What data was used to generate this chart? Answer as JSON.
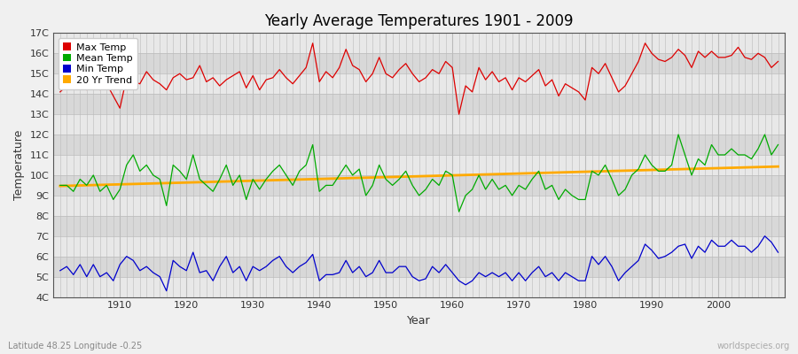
{
  "title": "Yearly Average Temperatures 1901 - 2009",
  "xlabel": "Year",
  "ylabel": "Temperature",
  "subtitle": "Latitude 48.25 Longitude -0.25",
  "watermark": "worldspecies.org",
  "years": [
    1901,
    1902,
    1903,
    1904,
    1905,
    1906,
    1907,
    1908,
    1909,
    1910,
    1911,
    1912,
    1913,
    1914,
    1915,
    1916,
    1917,
    1918,
    1919,
    1920,
    1921,
    1922,
    1923,
    1924,
    1925,
    1926,
    1927,
    1928,
    1929,
    1930,
    1931,
    1932,
    1933,
    1934,
    1935,
    1936,
    1937,
    1938,
    1939,
    1940,
    1941,
    1942,
    1943,
    1944,
    1945,
    1946,
    1947,
    1948,
    1949,
    1950,
    1951,
    1952,
    1953,
    1954,
    1955,
    1956,
    1957,
    1958,
    1959,
    1960,
    1961,
    1962,
    1963,
    1964,
    1965,
    1966,
    1967,
    1968,
    1969,
    1970,
    1971,
    1972,
    1973,
    1974,
    1975,
    1976,
    1977,
    1978,
    1979,
    1980,
    1981,
    1982,
    1983,
    1984,
    1985,
    1986,
    1987,
    1988,
    1989,
    1990,
    1991,
    1992,
    1993,
    1994,
    1995,
    1996,
    1997,
    1998,
    1999,
    2000,
    2001,
    2002,
    2003,
    2004,
    2005,
    2006,
    2007,
    2008,
    2009
  ],
  "max_temp": [
    14.1,
    14.4,
    14.3,
    14.7,
    14.2,
    14.8,
    14.2,
    14.5,
    13.9,
    13.3,
    14.8,
    14.6,
    14.5,
    15.1,
    14.7,
    14.5,
    14.2,
    14.8,
    15.0,
    14.7,
    14.8,
    15.4,
    14.6,
    14.8,
    14.4,
    14.7,
    14.9,
    15.1,
    14.3,
    14.9,
    14.2,
    14.7,
    14.8,
    15.2,
    14.8,
    14.5,
    14.9,
    15.3,
    16.5,
    14.6,
    15.1,
    14.8,
    15.3,
    16.2,
    15.4,
    15.2,
    14.6,
    15.0,
    15.8,
    15.0,
    14.8,
    15.2,
    15.5,
    15.0,
    14.6,
    14.8,
    15.2,
    15.0,
    15.6,
    15.3,
    13.0,
    14.4,
    14.1,
    15.3,
    14.7,
    15.1,
    14.6,
    14.8,
    14.2,
    14.8,
    14.6,
    14.9,
    15.2,
    14.4,
    14.7,
    13.9,
    14.5,
    14.3,
    14.1,
    13.7,
    15.3,
    15.0,
    15.5,
    14.8,
    14.1,
    14.4,
    15.0,
    15.6,
    16.5,
    16.0,
    15.7,
    15.6,
    15.8,
    16.2,
    15.9,
    15.3,
    16.1,
    15.8,
    16.1,
    15.8,
    15.8,
    15.9,
    16.3,
    15.8,
    15.7,
    16.0,
    15.8,
    15.3,
    15.6
  ],
  "mean_temp": [
    9.5,
    9.5,
    9.2,
    9.8,
    9.5,
    10.0,
    9.2,
    9.5,
    8.8,
    9.3,
    10.5,
    11.0,
    10.2,
    10.5,
    10.0,
    9.8,
    8.5,
    10.5,
    10.2,
    9.8,
    11.0,
    9.8,
    9.5,
    9.2,
    9.8,
    10.5,
    9.5,
    10.0,
    8.8,
    9.8,
    9.3,
    9.8,
    10.2,
    10.5,
    10.0,
    9.5,
    10.2,
    10.5,
    11.5,
    9.2,
    9.5,
    9.5,
    10.0,
    10.5,
    10.0,
    10.3,
    9.0,
    9.5,
    10.5,
    9.8,
    9.5,
    9.8,
    10.2,
    9.5,
    9.0,
    9.3,
    9.8,
    9.5,
    10.2,
    10.0,
    8.2,
    9.0,
    9.3,
    10.0,
    9.3,
    9.8,
    9.3,
    9.5,
    9.0,
    9.5,
    9.3,
    9.8,
    10.2,
    9.3,
    9.5,
    8.8,
    9.3,
    9.0,
    8.8,
    8.8,
    10.2,
    10.0,
    10.5,
    9.8,
    9.0,
    9.3,
    10.0,
    10.3,
    11.0,
    10.5,
    10.2,
    10.2,
    10.5,
    12.0,
    11.0,
    10.0,
    10.8,
    10.5,
    11.5,
    11.0,
    11.0,
    11.3,
    11.0,
    11.0,
    10.8,
    11.3,
    12.0,
    11.0,
    11.5
  ],
  "min_temp": [
    5.3,
    5.5,
    5.1,
    5.6,
    5.0,
    5.6,
    5.0,
    5.2,
    4.8,
    5.6,
    6.0,
    5.8,
    5.3,
    5.5,
    5.2,
    5.0,
    4.3,
    5.8,
    5.5,
    5.3,
    6.2,
    5.2,
    5.3,
    4.8,
    5.5,
    6.0,
    5.2,
    5.5,
    4.8,
    5.5,
    5.3,
    5.5,
    5.8,
    6.0,
    5.5,
    5.2,
    5.5,
    5.7,
    6.1,
    4.8,
    5.1,
    5.1,
    5.2,
    5.8,
    5.2,
    5.5,
    5.0,
    5.2,
    5.8,
    5.2,
    5.2,
    5.5,
    5.5,
    5.0,
    4.8,
    4.9,
    5.5,
    5.2,
    5.6,
    5.2,
    4.8,
    4.6,
    4.8,
    5.2,
    5.0,
    5.2,
    5.0,
    5.2,
    4.8,
    5.2,
    4.8,
    5.2,
    5.5,
    5.0,
    5.2,
    4.8,
    5.2,
    5.0,
    4.8,
    4.8,
    6.0,
    5.6,
    6.0,
    5.5,
    4.8,
    5.2,
    5.5,
    5.8,
    6.6,
    6.3,
    5.9,
    6.0,
    6.2,
    6.5,
    6.6,
    5.9,
    6.5,
    6.2,
    6.8,
    6.5,
    6.5,
    6.8,
    6.5,
    6.5,
    6.2,
    6.5,
    7.0,
    6.7,
    6.2
  ],
  "colors": {
    "max_temp": "#dd0000",
    "mean_temp": "#00aa00",
    "min_temp": "#0000cc",
    "trend": "#ffaa00",
    "band_light": "#e8e8e8",
    "band_dark": "#d8d8d8",
    "grid_v": "#cccccc",
    "grid_h": "#cccccc",
    "text": "#333333",
    "figure_bg": "#f0f0f0"
  },
  "yticks": [
    "4C",
    "5C",
    "6C",
    "7C",
    "8C",
    "9C",
    "10C",
    "11C",
    "12C",
    "13C",
    "14C",
    "15C",
    "16C",
    "17C"
  ],
  "ytick_vals": [
    4,
    5,
    6,
    7,
    8,
    9,
    10,
    11,
    12,
    13,
    14,
    15,
    16,
    17
  ],
  "ylim": [
    4,
    17
  ],
  "xlim": [
    1900,
    2010
  ],
  "xticks": [
    1910,
    1920,
    1930,
    1940,
    1950,
    1960,
    1970,
    1980,
    1990,
    2000
  ]
}
